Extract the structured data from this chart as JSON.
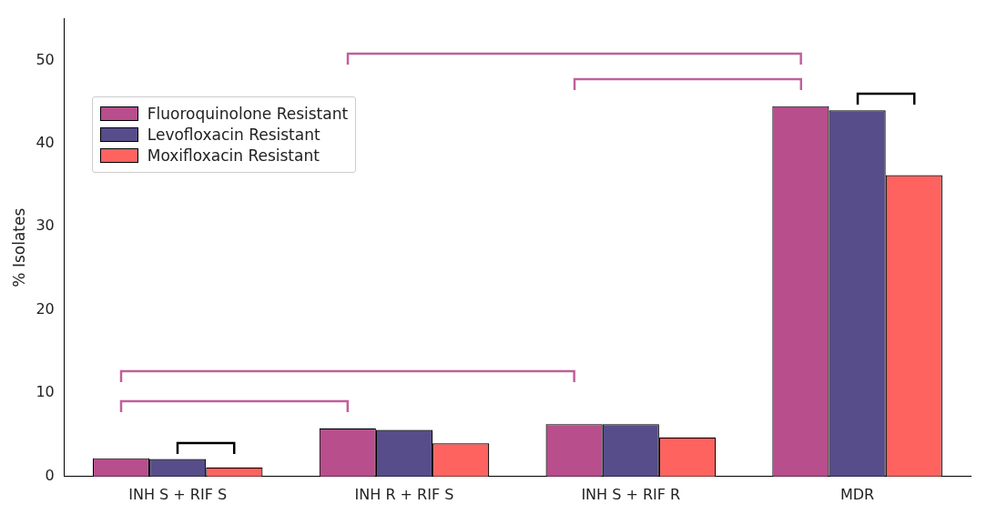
{
  "chart_data": {
    "type": "bar",
    "ylabel": "% Isolates",
    "categories": [
      "INH S + RIF S",
      "INH R + RIF S",
      "INH S + RIF R",
      "MDR"
    ],
    "series": [
      {
        "name": "Fluoroquinolone Resistant",
        "color": "#b84e8c",
        "values": [
          2.2,
          5.8,
          6.3,
          44.5
        ]
      },
      {
        "name": "Levofloxacin Resistant",
        "color": "#574d8a",
        "values": [
          2.1,
          5.6,
          6.3,
          44.0
        ]
      },
      {
        "name": "Moxifloxacin Resistant",
        "color": "#fe6360",
        "values": [
          1.1,
          4.0,
          4.7,
          36.2
        ]
      }
    ],
    "ylim": [
      0,
      55
    ],
    "yticks": [
      0,
      10,
      20,
      30,
      40,
      50
    ],
    "grid": false,
    "legend": "top left"
  }
}
